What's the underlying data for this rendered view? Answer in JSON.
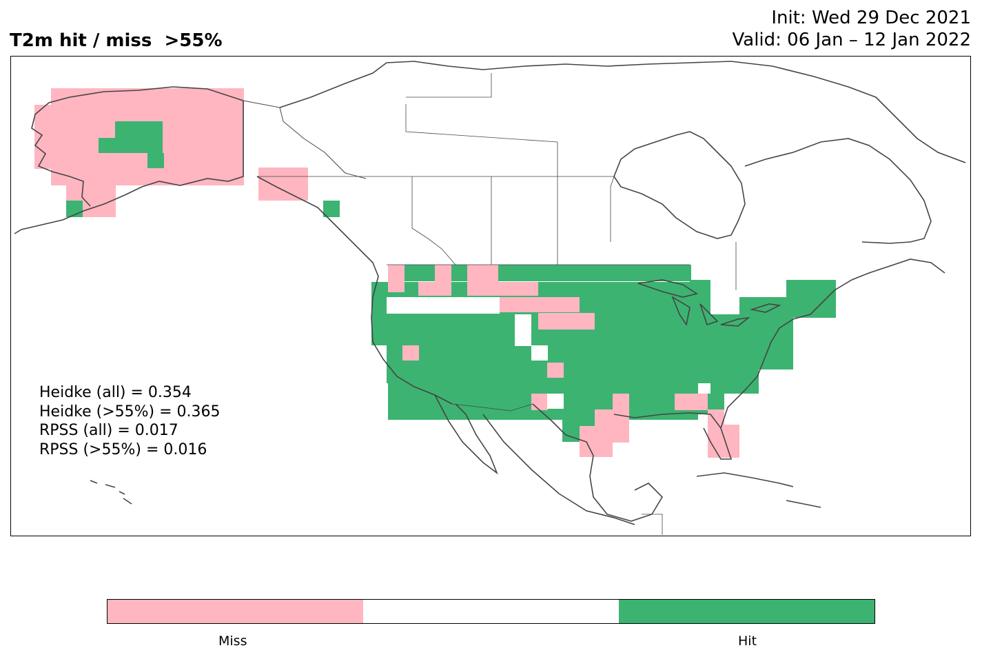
{
  "title": {
    "left": "T2m hit / miss  >55%",
    "init": "Init: Wed 29 Dec 2021",
    "valid": "Valid: 06 Jan – 12 Jan 2022"
  },
  "scores": {
    "heidke_all": "Heidke (all) = 0.354",
    "heidke_55": "Heidke (>55%) = 0.365",
    "rpss_all": "RPSS (all) = 0.017",
    "rpss_55": "RPSS (>55%) = 0.016"
  },
  "colors": {
    "miss": "#ffb6c1",
    "neutral": "#ffffff",
    "hit": "#3cb371",
    "coastline": "#444444"
  },
  "colorbar": {
    "labels": [
      "Miss",
      "Hit"
    ]
  }
}
